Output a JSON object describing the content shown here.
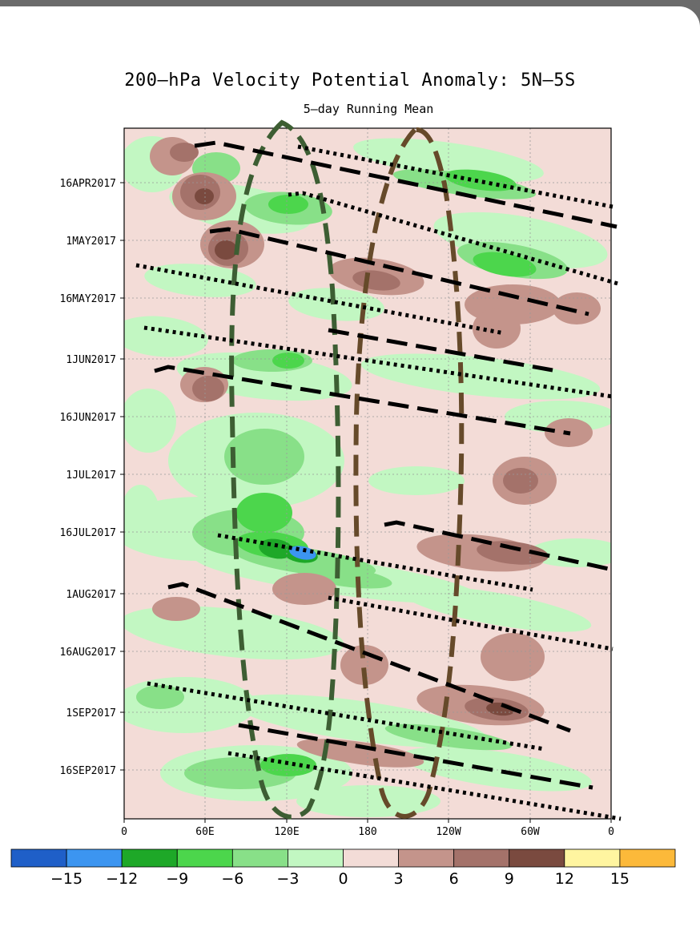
{
  "chart_data": {
    "type": "heatmap",
    "title": "200–hPa Velocity Potential Anomaly: 5N–5S",
    "subtitle": "5–day Running Mean",
    "x_ticks": [
      "0",
      "60E",
      "120E",
      "180",
      "120W",
      "60W",
      "0"
    ],
    "y_ticks": [
      "16APR2017",
      "1MAY2017",
      "16MAY2017",
      "1JUN2017",
      "16JUN2017",
      "1JUL2017",
      "16JUL2017",
      "1AUG2017",
      "16AUG2017",
      "1SEP2017",
      "16SEP2017"
    ],
    "xlim": [
      "0",
      "0 (360)"
    ],
    "ylim": [
      "2 APR 2017",
      "30 SEP 2017"
    ],
    "grid": true,
    "colorbar": {
      "levels": [
        "−15",
        "−12",
        "−9",
        "−6",
        "−3",
        "0",
        "3",
        "6",
        "9",
        "12",
        "15"
      ],
      "colors": [
        "#1f5fc8",
        "#3c95f0",
        "#1ea828",
        "#4cd64c",
        "#88e088",
        "#c2f7c2",
        "#f3dcd7",
        "#c4948b",
        "#a4726a",
        "#7a4a3f",
        "#fff5a0",
        "#fcb93a"
      ]
    },
    "field_colors": {
      "neutral": "#f3dcd7",
      "light_green": "#c2f7c2",
      "mid_green": "#88e088",
      "green": "#4cd64c",
      "dark_green": "#1ea828",
      "blue": "#3c95f0",
      "light_brown": "#c4948b",
      "brown": "#a4726a",
      "dark_brown": "#7a4a3f"
    },
    "annotation_colors": {
      "green_ellipse": "#3d5e33",
      "brown_ellipse": "#664a2a",
      "propagation_lines": "#000000"
    }
  }
}
